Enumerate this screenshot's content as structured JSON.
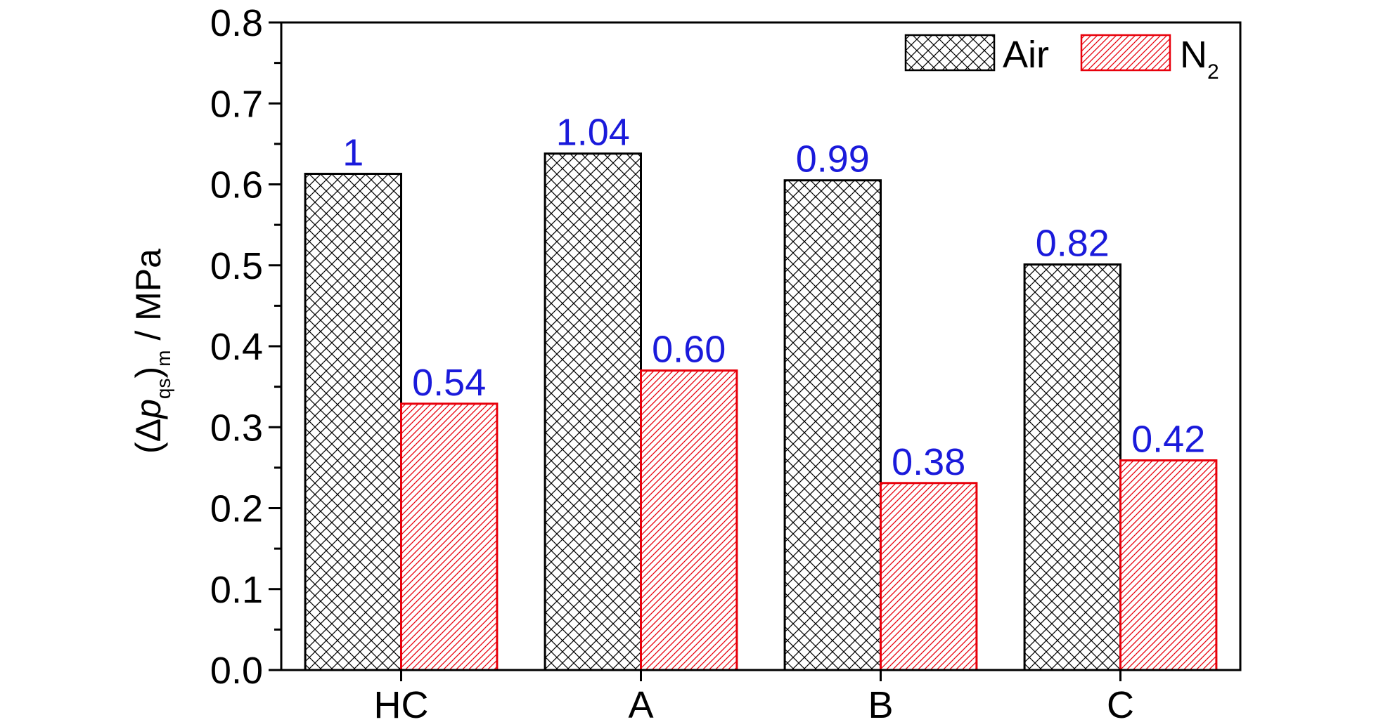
{
  "chart_data": {
    "type": "bar",
    "categories": [
      "HC",
      "A",
      "B",
      "C"
    ],
    "series": [
      {
        "name": "Air",
        "values": [
          0.613,
          0.638,
          0.605,
          0.501
        ],
        "labels": [
          "1",
          "1.04",
          "0.99",
          "0.82"
        ]
      },
      {
        "name": "N",
        "name_subscript": "2",
        "values": [
          0.329,
          0.37,
          0.231,
          0.259
        ],
        "labels": [
          "0.54",
          "0.60",
          "0.38",
          "0.42"
        ]
      }
    ],
    "ylabel": {
      "open": "(Δ",
      "var": "p",
      "sub1": "qs",
      "close": ")",
      "sub2": "m",
      "unit": " / MPa"
    },
    "ylim": [
      0,
      0.8
    ],
    "yticks": [
      "0.0",
      "0.1",
      "0.2",
      "0.3",
      "0.4",
      "0.5",
      "0.6",
      "0.7",
      "0.8"
    ],
    "legend_position": "top-right",
    "grid": false,
    "colors": {
      "air_edge": "#000000",
      "n2_edge": "#e8000b",
      "data_label": "#1a1adb",
      "axis": "#000000"
    },
    "patterns": {
      "air": "crosshatch",
      "n2": "diagonal-hatch"
    }
  }
}
